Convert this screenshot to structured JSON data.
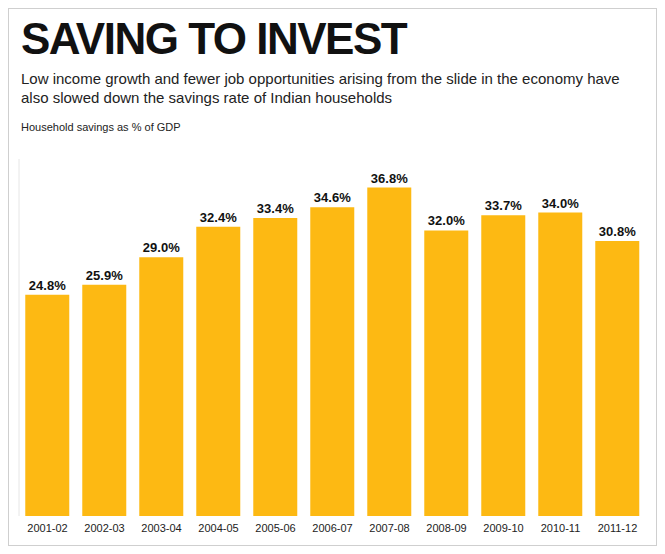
{
  "chart_data": {
    "type": "bar",
    "title": "SAVING TO INVEST",
    "subtitle": "Low income growth and fewer job opportunities arising from the slide in the economy have also slowed down the savings rate of Indian households",
    "y_label": "Household savings as % of GDP",
    "categories": [
      "2001-02",
      "2002-03",
      "2003-04",
      "2004-05",
      "2005-06",
      "2006-07",
      "2007-08",
      "2008-09",
      "2009-10",
      "2010-11",
      "2011-12"
    ],
    "values": [
      24.8,
      25.9,
      29.0,
      32.4,
      33.4,
      34.6,
      36.8,
      32.0,
      33.7,
      34.0,
      30.8
    ],
    "value_labels": [
      "24.8%",
      "25.9%",
      "29.0%",
      "32.4%",
      "33.4%",
      "34.6%",
      "36.8%",
      "32.0%",
      "33.7%",
      "34.0%",
      "30.8%"
    ],
    "color": "#fdb913",
    "ylim": [
      0,
      40
    ],
    "grid": false,
    "data_labels": true,
    "tick_labels": "x"
  }
}
